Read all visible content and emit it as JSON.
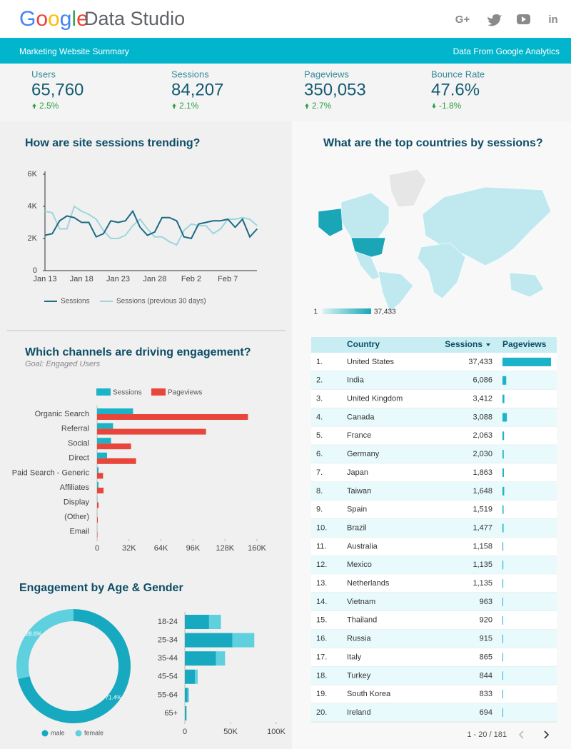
{
  "header": {
    "logo_google": "Google",
    "logo_product": "Data Studio",
    "social": [
      "G+",
      "in"
    ]
  },
  "banner": {
    "left": "Marketing Website Summary",
    "right": "Data From Google Analytics"
  },
  "kpis": [
    {
      "label": "Users",
      "value": "65,760",
      "change": "2.5%",
      "direction": "up"
    },
    {
      "label": "Sessions",
      "value": "84,207",
      "change": "2.1%",
      "direction": "up"
    },
    {
      "label": "Pageviews",
      "value": "350,053",
      "change": "2.7%",
      "direction": "up"
    },
    {
      "label": "Bounce Rate",
      "value": "47.6%",
      "change": "-1.8%",
      "direction": "down"
    }
  ],
  "chart_data": [
    {
      "type": "line",
      "title": "How are site sessions trending?",
      "categories": [
        "Jan 13",
        null,
        null,
        null,
        null,
        "Jan 18",
        null,
        null,
        null,
        null,
        "Jan 23",
        null,
        null,
        null,
        null,
        "Jan 28",
        null,
        null,
        null,
        null,
        "Feb 2",
        null,
        null,
        null,
        null,
        "Feb 7",
        null,
        null,
        null,
        null
      ],
      "series": [
        {
          "name": "Sessions",
          "color": "#1a6b84",
          "values": [
            2200,
            2300,
            3100,
            3400,
            3300,
            3000,
            3000,
            2100,
            2300,
            3100,
            3000,
            3100,
            3700,
            2700,
            2200,
            2400,
            3300,
            3300,
            3100,
            2100,
            2000,
            2900,
            3000,
            3100,
            3100,
            3200,
            2700,
            3200,
            2100,
            2600
          ]
        },
        {
          "name": "Sessions (previous 30 days)",
          "color": "#9dd5dd",
          "values": [
            3700,
            3600,
            2600,
            2600,
            4000,
            3700,
            3500,
            3200,
            2500,
            2000,
            2000,
            2200,
            2800,
            3200,
            2600,
            2100,
            2100,
            1800,
            1600,
            2500,
            2900,
            2800,
            2800,
            2300,
            2600,
            3200,
            3200,
            3300,
            3200,
            2800
          ]
        }
      ],
      "ylim": [
        0,
        6000
      ],
      "yticks": [
        0,
        {
          "value": 2000,
          "label": "2K"
        },
        {
          "value": 4000,
          "label": "4K"
        },
        {
          "value": 6000,
          "label": "6K"
        }
      ],
      "grid": false
    },
    {
      "type": "map",
      "title": "What are the top countries by sessions?",
      "color": "#1aa6b7",
      "scale_ticks": [
        1,
        {
          "value": 37433,
          "label": "37,433"
        }
      ]
    },
    {
      "type": "hbar",
      "title": "Which channels are driving engagement?",
      "subtitle": "Goal: Engaged Users",
      "categories": [
        "Organic Search",
        "Referral",
        "Social",
        "Direct",
        "Paid Search - Generic",
        "Affiliates",
        "Display",
        "(Other)",
        "Email"
      ],
      "series": [
        {
          "name": "Sessions",
          "color": "#1bb3c8",
          "values": [
            36000,
            16000,
            14000,
            10000,
            1500,
            1400,
            300,
            100,
            50
          ]
        },
        {
          "name": "Pageviews",
          "color": "#e8463a",
          "values": [
            151000,
            109000,
            34000,
            39000,
            6000,
            6500,
            1500,
            700,
            400
          ]
        }
      ],
      "xlim": [
        0,
        160000
      ],
      "xticks": [
        0,
        {
          "value": 32000,
          "label": "32K"
        },
        {
          "value": 64000,
          "label": "64K"
        },
        {
          "value": 96000,
          "label": "96K"
        },
        {
          "value": 128000,
          "label": "128K"
        },
        {
          "value": 160000,
          "label": "160K"
        }
      ],
      "grid": false
    },
    {
      "type": "donut",
      "title": "Engagement by Age & Gender",
      "categories": [
        "male",
        "female"
      ],
      "values": [
        71.4,
        28.6
      ],
      "value_labels": [
        "71.4%",
        "28.6%"
      ],
      "colors": [
        "#17a9bf",
        "#5fd0dd"
      ]
    },
    {
      "type": "stacked_hbar",
      "categories": [
        "18-24",
        "25-34",
        "35-44",
        "45-54",
        "55-64",
        "65+"
      ],
      "series": [
        {
          "color": "#17a9bf",
          "values": [
            26500,
            52000,
            34000,
            11000,
            3000,
            1500
          ]
        },
        {
          "color": "#5fd0dd",
          "values": [
            13000,
            24000,
            10000,
            3000,
            1500,
            500
          ]
        }
      ],
      "xlim": [
        0,
        100000
      ],
      "xticks": [
        0,
        {
          "value": 50000,
          "label": "50K"
        },
        {
          "value": 100000,
          "label": "100K"
        }
      ]
    }
  ],
  "table": {
    "columns": [
      "Country",
      "Sessions",
      "Pageviews"
    ],
    "bar_color": "#1bb3c8",
    "rows": [
      {
        "rank": "1.",
        "country": "United States",
        "sessions": "37,433",
        "pageviews": 155000
      },
      {
        "rank": "2.",
        "country": "India",
        "sessions": "6,086",
        "pageviews": 12000
      },
      {
        "rank": "3.",
        "country": "United Kingdom",
        "sessions": "3,412",
        "pageviews": 6000
      },
      {
        "rank": "4.",
        "country": "Canada",
        "sessions": "3,088",
        "pageviews": 14000
      },
      {
        "rank": "5.",
        "country": "France",
        "sessions": "2,063",
        "pageviews": 5000
      },
      {
        "rank": "6.",
        "country": "Germany",
        "sessions": "2,030",
        "pageviews": 4000
      },
      {
        "rank": "7.",
        "country": "Japan",
        "sessions": "1,863",
        "pageviews": 4500
      },
      {
        "rank": "8.",
        "country": "Taiwan",
        "sessions": "1,648",
        "pageviews": 5500
      },
      {
        "rank": "9.",
        "country": "Spain",
        "sessions": "1,519",
        "pageviews": 3500
      },
      {
        "rank": "10.",
        "country": "Brazil",
        "sessions": "1,477",
        "pageviews": 3500
      },
      {
        "rank": "11.",
        "country": "Australia",
        "sessions": "1,158",
        "pageviews": 2500
      },
      {
        "rank": "12.",
        "country": "Mexico",
        "sessions": "1,135",
        "pageviews": 2600
      },
      {
        "rank": "13.",
        "country": "Netherlands",
        "sessions": "1,135",
        "pageviews": 2400
      },
      {
        "rank": "14.",
        "country": "Vietnam",
        "sessions": "963",
        "pageviews": 1800
      },
      {
        "rank": "15.",
        "country": "Thailand",
        "sessions": "920",
        "pageviews": 1700
      },
      {
        "rank": "16.",
        "country": "Russia",
        "sessions": "915",
        "pageviews": 2000
      },
      {
        "rank": "17.",
        "country": "Italy",
        "sessions": "865",
        "pageviews": 1800
      },
      {
        "rank": "18.",
        "country": "Turkey",
        "sessions": "844",
        "pageviews": 1700
      },
      {
        "rank": "19.",
        "country": "South Korea",
        "sessions": "833",
        "pageviews": 1600
      },
      {
        "rank": "20.",
        "country": "Ireland",
        "sessions": "694",
        "pageviews": 1500
      }
    ],
    "pagination": "1 - 20 / 181"
  }
}
